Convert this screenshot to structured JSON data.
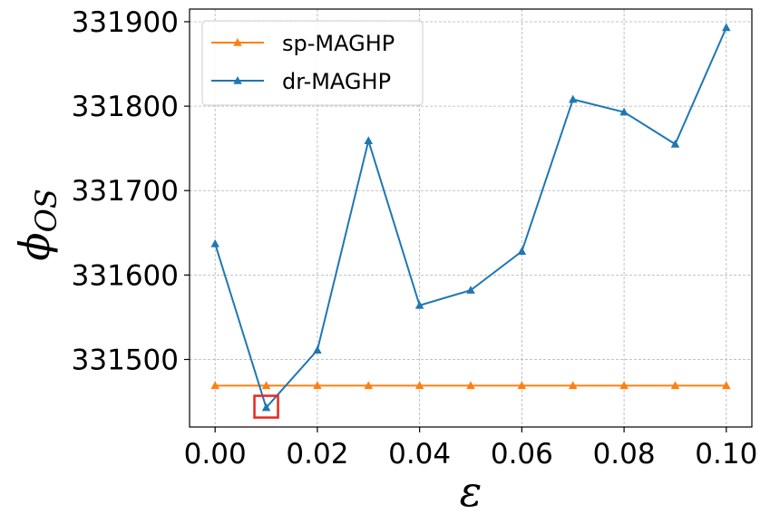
{
  "chart_data": {
    "type": "line",
    "title": "",
    "xlabel": "ε",
    "ylabel_symbol": "ϕ",
    "ylabel_subscript": "OS",
    "x": [
      0.0,
      0.01,
      0.02,
      0.03,
      0.04,
      0.05,
      0.06,
      0.07,
      0.08,
      0.09,
      0.1
    ],
    "xlim": [
      -0.005,
      0.105
    ],
    "ylim": [
      331420,
      331915
    ],
    "xticks": [
      0.0,
      0.02,
      0.04,
      0.06,
      0.08,
      0.1
    ],
    "xtick_labels": [
      "0.00",
      "0.02",
      "0.04",
      "0.06",
      "0.08",
      "0.10"
    ],
    "yticks": [
      331500,
      331600,
      331700,
      331800,
      331900
    ],
    "ytick_labels": [
      "331500",
      "331600",
      "331700",
      "331800",
      "331900"
    ],
    "grid": true,
    "legend_position": "top-left",
    "series": [
      {
        "name": "sp-MAGHP",
        "color": "#ff7f0e",
        "marker": "triangle",
        "values": [
          331469,
          331469,
          331469,
          331469,
          331469,
          331469,
          331469,
          331469,
          331469,
          331469,
          331469
        ]
      },
      {
        "name": "dr-MAGHP",
        "color": "#1f77b4",
        "marker": "triangle",
        "values": [
          331637,
          331443,
          331511,
          331759,
          331564,
          331582,
          331628,
          331808,
          331793,
          331755,
          331893
        ]
      }
    ],
    "highlight": {
      "x": 0.01,
      "y": 331443,
      "color": "#e8281e"
    }
  }
}
